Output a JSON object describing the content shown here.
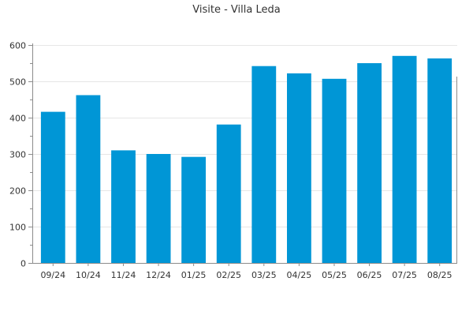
{
  "chart_data": {
    "type": "bar",
    "title": "Visite - Villa Leda",
    "xlabel": "",
    "ylabel": "",
    "categories": [
      "09/24",
      "10/24",
      "11/24",
      "12/24",
      "01/25",
      "02/25",
      "03/25",
      "04/25",
      "05/25",
      "06/25",
      "07/25",
      "08/25"
    ],
    "values": [
      416,
      462,
      310,
      300,
      292,
      381,
      542,
      522,
      507,
      550,
      570,
      563
    ],
    "ylim": [
      0,
      600
    ],
    "yticks": [
      0,
      100,
      200,
      300,
      400,
      500,
      600
    ],
    "grid": true,
    "legend": "none",
    "bar_color": "#0096d6"
  }
}
